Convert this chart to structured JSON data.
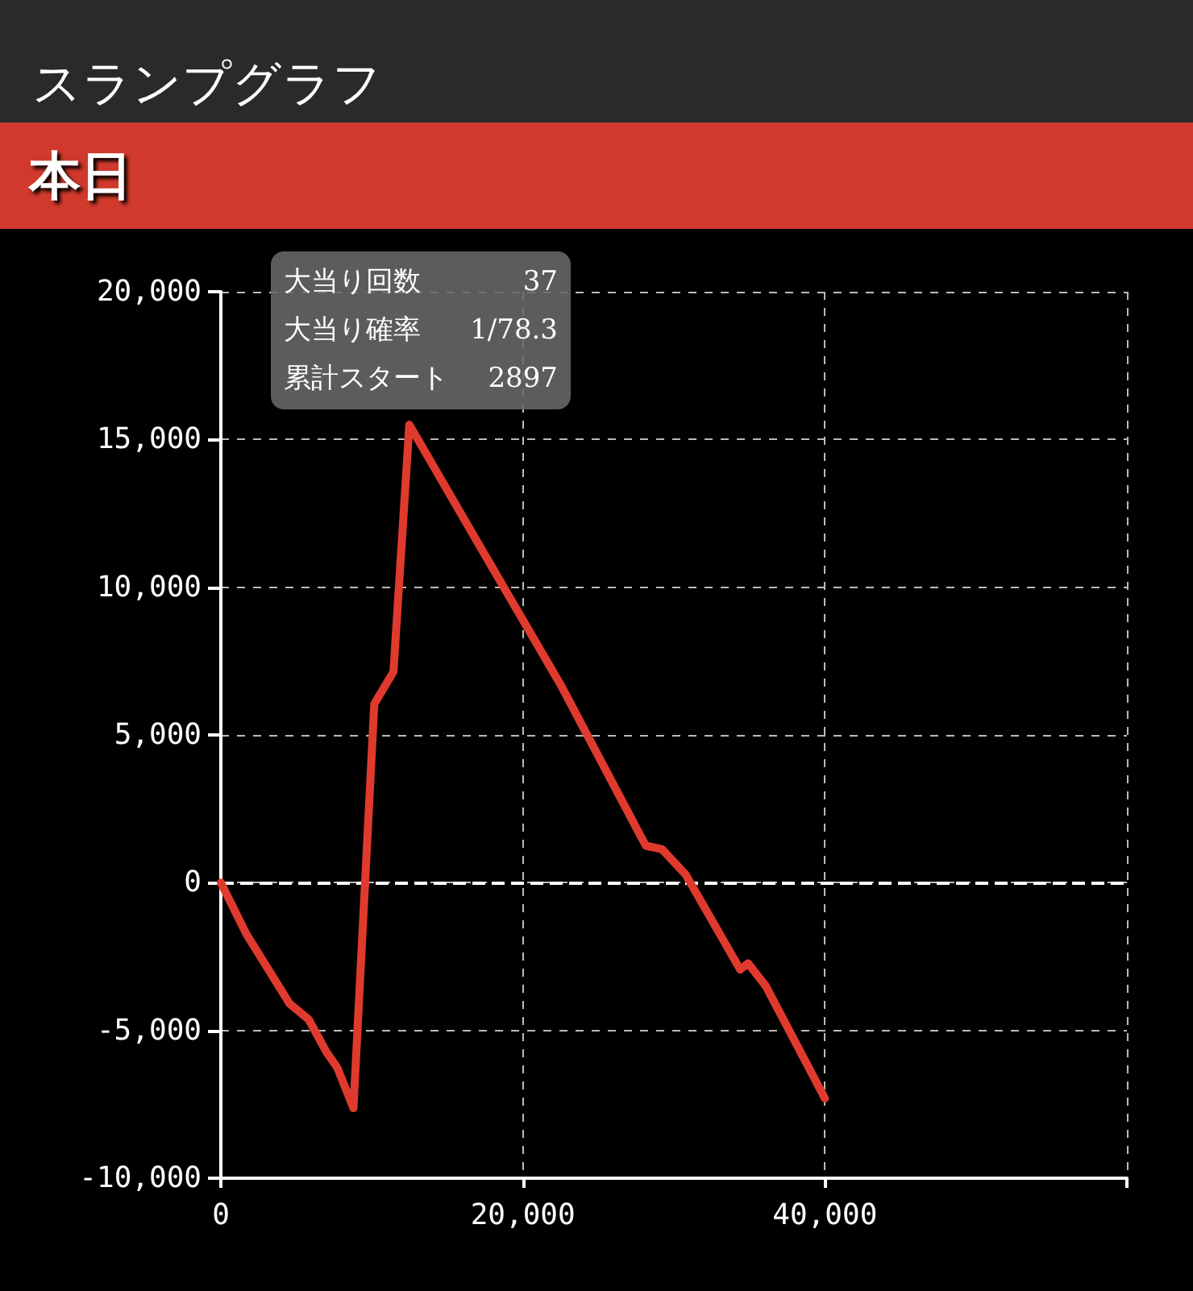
{
  "chart_data": {
    "type": "line",
    "title": "スランプグラフ",
    "subtitle": "本日",
    "annotations": [
      "大当り回数 37",
      "大当り確率 1/78.3",
      "累計スタート 2897"
    ],
    "x": [
      0,
      1690,
      3490,
      4550,
      5820,
      6980,
      7720,
      8780,
      10160,
      11430,
      12480,
      17250,
      22500,
      28140,
      29200,
      30790,
      34390,
      34910,
      36080,
      40000
    ],
    "series": [
      {
        "color": "#e03a2e",
        "values": [
          0,
          -1740,
          -3220,
          -4090,
          -4630,
          -5720,
          -6270,
          -7630,
          6050,
          7140,
          15500,
          11300,
          6700,
          1250,
          1140,
          270,
          -2940,
          -2730,
          -3490,
          -7300
        ]
      }
    ],
    "xlim": [
      0,
      60000
    ],
    "xticks": [
      0,
      {
        "value": 20000,
        "label": "20,000"
      },
      {
        "value": 40000,
        "label": "40,000"
      },
      {
        "value": 60000,
        "label": null
      }
    ],
    "ylim": [
      -10000,
      20000
    ],
    "yticks": [
      {
        "value": -10000,
        "label": "-10,000"
      },
      {
        "value": -5000,
        "label": "-5,000"
      },
      0,
      {
        "value": 5000,
        "label": "5,000"
      },
      {
        "value": 10000,
        "label": "10,000"
      },
      {
        "value": 15000,
        "label": "15,000"
      },
      {
        "value": 20000,
        "label": "20,000"
      }
    ],
    "grid": true,
    "marker": "none",
    "line_style": "solid",
    "ref_lines": [
      {
        "axis": "y",
        "value": 0,
        "color": "#ffffff",
        "line_style": "dashed"
      }
    ]
  }
}
